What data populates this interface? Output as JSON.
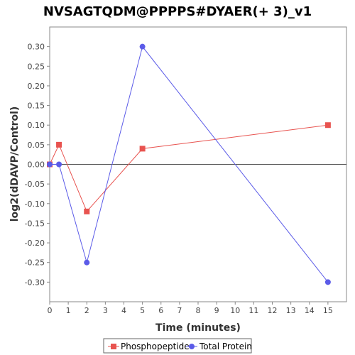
{
  "chart_data": {
    "type": "line",
    "title": "NVSAGTQDM@PPPPS#DYAER(+ 3)_v1",
    "xlabel": "Time (minutes)",
    "ylabel": "log2(dDAVP/Control)",
    "xlim": [
      0,
      16
    ],
    "ylim": [
      -0.35,
      0.35
    ],
    "x_ticks": [
      0,
      1,
      2,
      3,
      4,
      5,
      6,
      7,
      8,
      9,
      10,
      11,
      12,
      13,
      14,
      15
    ],
    "y_ticks": [
      0.3,
      0.25,
      0.2,
      0.15,
      0.1,
      0.05,
      0.0,
      -0.05,
      -0.1,
      -0.15,
      -0.2,
      -0.25,
      -0.3
    ],
    "y_tick_labels": [
      "0.30",
      "0.25",
      "0.20",
      "0.15",
      "0.10",
      "0.05",
      "0.00",
      "-0.05",
      "-0.10",
      "-0.15",
      "-0.20",
      "-0.25",
      "-0.30"
    ],
    "grid": false,
    "zero_line": true,
    "legend_position": "bottom",
    "series": [
      {
        "name": "Phosphopeptide",
        "color": "#e8534f",
        "marker": "square",
        "x": [
          0,
          0.5,
          2,
          5,
          15
        ],
        "y": [
          0.0,
          0.05,
          -0.12,
          0.04,
          0.1
        ]
      },
      {
        "name": "Total Protein",
        "color": "#5b5be8",
        "marker": "circle",
        "x": [
          0,
          0.5,
          2,
          5,
          15
        ],
        "y": [
          0.0,
          0.0,
          -0.25,
          0.3,
          -0.3
        ]
      }
    ]
  }
}
